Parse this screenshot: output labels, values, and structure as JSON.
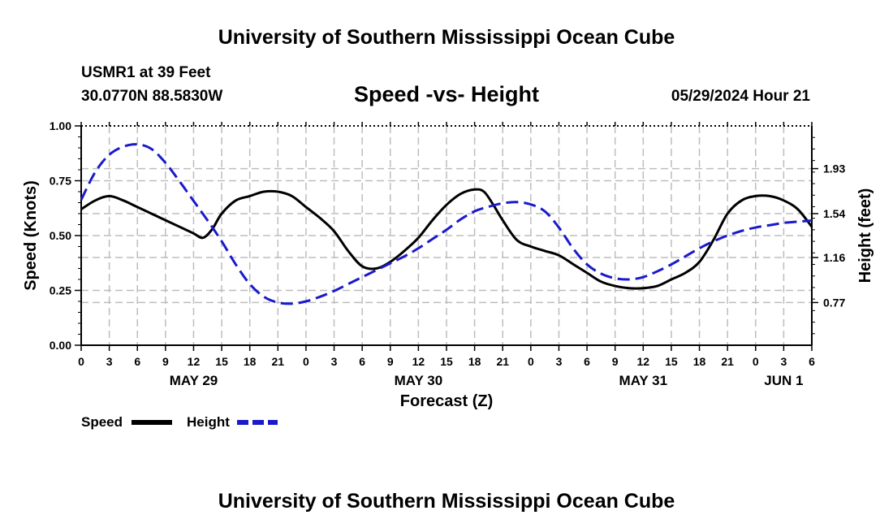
{
  "header": {
    "title": "University of Southern Mississippi Ocean Cube",
    "station": "USMR1 at 39 Feet",
    "location": "30.0770N  88.5830W",
    "subtitle": "Speed -vs- Height",
    "timestamp": "05/29/2024 Hour 21",
    "footer_title": "University of Southern Mississippi Ocean Cube"
  },
  "legend": {
    "speed_label": "Speed",
    "height_label": "Height"
  },
  "colors": {
    "speed": "#000000",
    "height": "#1a1acc",
    "grid": "#bdbdbd"
  },
  "chart_data": {
    "type": "line",
    "title": "Speed -vs- Height",
    "xlabel": "Forecast (Z)",
    "ylabel": "Speed (Knots)",
    "y2label": "Height (feet)",
    "xlim": [
      0,
      78
    ],
    "ylim": [
      0,
      1.0
    ],
    "y2lim": [
      0.4,
      2.3
    ],
    "grid": true,
    "x_tick_values": [
      0,
      3,
      6,
      9,
      12,
      15,
      18,
      21,
      24,
      27,
      30,
      33,
      36,
      39,
      42,
      45,
      48,
      51,
      54,
      57,
      60,
      63,
      66,
      69,
      72,
      75,
      78
    ],
    "x_tick_labels": [
      "0",
      "3",
      "6",
      "9",
      "12",
      "15",
      "18",
      "21",
      "0",
      "3",
      "6",
      "9",
      "12",
      "15",
      "18",
      "21",
      "0",
      "3",
      "6",
      "9",
      "12",
      "15",
      "18",
      "21",
      "0",
      "3",
      "6"
    ],
    "date_labels": [
      {
        "label": "MAY 29",
        "hour": 12
      },
      {
        "label": "MAY 30",
        "hour": 36
      },
      {
        "label": "MAY 31",
        "hour": 60
      },
      {
        "label": "JUN 1",
        "hour": 75
      }
    ],
    "y_ticks": [
      {
        "value": 0.0,
        "label": "0.00"
      },
      {
        "value": 0.25,
        "label": "0.25"
      },
      {
        "value": 0.5,
        "label": "0.50"
      },
      {
        "value": 0.75,
        "label": "0.75"
      },
      {
        "value": 1.0,
        "label": "1.00"
      }
    ],
    "y2_ticks": [
      {
        "value": 0.77,
        "label": "0.77"
      },
      {
        "value": 1.16,
        "label": "1.16"
      },
      {
        "value": 1.54,
        "label": "1.54"
      },
      {
        "value": 1.93,
        "label": "1.93"
      }
    ],
    "series": [
      {
        "name": "Speed",
        "axis": "left",
        "x": [
          0,
          1.5,
          3,
          4.5,
          6,
          7.5,
          9,
          10.5,
          12,
          13,
          14,
          15,
          16.5,
          18,
          19.5,
          21,
          22.5,
          24,
          25.5,
          27,
          28.5,
          30,
          31.5,
          33,
          34.5,
          36,
          37.5,
          39,
          40.5,
          42,
          43,
          44,
          45,
          46.5,
          48,
          49.5,
          51,
          52.5,
          54,
          55.5,
          57,
          58.5,
          60,
          61.5,
          63,
          64.5,
          66,
          67.5,
          69,
          70.5,
          72,
          73.5,
          75,
          76.5,
          78
        ],
        "values": [
          0.62,
          0.66,
          0.68,
          0.66,
          0.63,
          0.6,
          0.57,
          0.54,
          0.51,
          0.49,
          0.53,
          0.6,
          0.66,
          0.68,
          0.7,
          0.7,
          0.68,
          0.63,
          0.58,
          0.52,
          0.43,
          0.36,
          0.35,
          0.38,
          0.43,
          0.49,
          0.57,
          0.64,
          0.69,
          0.71,
          0.7,
          0.64,
          0.57,
          0.48,
          0.45,
          0.43,
          0.41,
          0.37,
          0.33,
          0.29,
          0.27,
          0.26,
          0.26,
          0.27,
          0.3,
          0.33,
          0.38,
          0.48,
          0.6,
          0.66,
          0.68,
          0.68,
          0.66,
          0.62,
          0.54
        ]
      },
      {
        "name": "Height",
        "axis": "right",
        "x": [
          0,
          1.5,
          3,
          4.5,
          6,
          7.5,
          9,
          10.5,
          12,
          13.5,
          15,
          16.5,
          18,
          19.5,
          21,
          22.5,
          24,
          25.5,
          27,
          28.5,
          30,
          31.5,
          33,
          34.5,
          36,
          37.5,
          39,
          40.5,
          42,
          43.5,
          45,
          46.5,
          48,
          49.5,
          51,
          52.5,
          54,
          55.5,
          57,
          58.5,
          60,
          61.5,
          63,
          64.5,
          66,
          67.5,
          69,
          70.5,
          72,
          73.5,
          75,
          76.5,
          78
        ],
        "values": [
          1.66,
          1.9,
          2.05,
          2.12,
          2.14,
          2.1,
          1.98,
          1.82,
          1.65,
          1.48,
          1.3,
          1.1,
          0.93,
          0.82,
          0.77,
          0.76,
          0.78,
          0.82,
          0.87,
          0.93,
          0.99,
          1.05,
          1.11,
          1.17,
          1.24,
          1.32,
          1.4,
          1.49,
          1.56,
          1.6,
          1.63,
          1.64,
          1.62,
          1.56,
          1.42,
          1.24,
          1.1,
          1.02,
          0.98,
          0.97,
          0.99,
          1.04,
          1.1,
          1.17,
          1.24,
          1.3,
          1.35,
          1.39,
          1.42,
          1.44,
          1.46,
          1.47,
          1.48
        ]
      }
    ]
  }
}
